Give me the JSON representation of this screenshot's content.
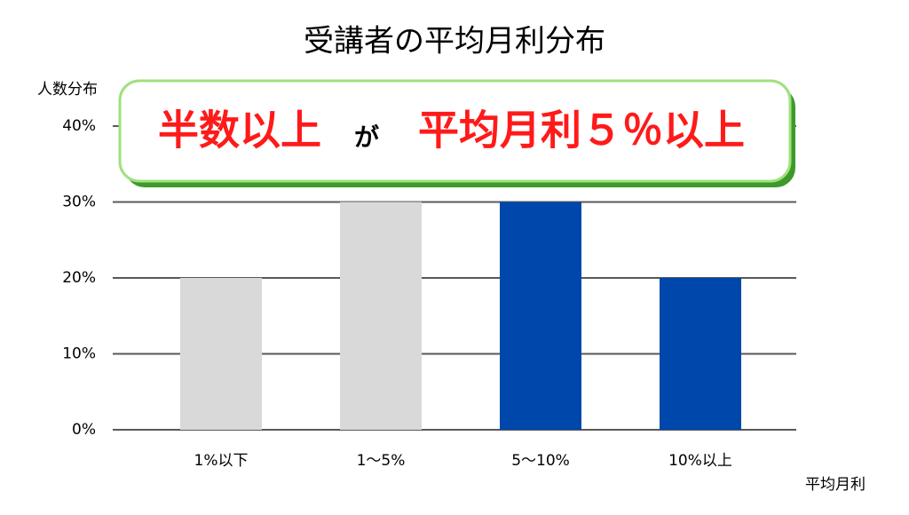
{
  "chart_data": {
    "type": "bar",
    "title": "受講者の平均月利分布",
    "y_label": "人数分布",
    "x_label": "平均月利",
    "categories": [
      "1%以下",
      "1〜5%",
      "5〜10%",
      "10%以上"
    ],
    "values": [
      20,
      30,
      30,
      20
    ],
    "colors": [
      "#d9d9d9",
      "#d9d9d9",
      "#0047ab",
      "#0047ab"
    ],
    "ylim": [
      0,
      40
    ],
    "yticks": [
      {
        "value": 0,
        "label": "0%"
      },
      {
        "value": 10,
        "label": "10%"
      },
      {
        "value": 20,
        "label": "20%"
      },
      {
        "value": 30,
        "label": "30%"
      },
      {
        "value": 40,
        "label": "40%"
      }
    ],
    "grid": true,
    "annotations": [
      "半数以上",
      "が",
      "平均月利５％以上"
    ]
  }
}
